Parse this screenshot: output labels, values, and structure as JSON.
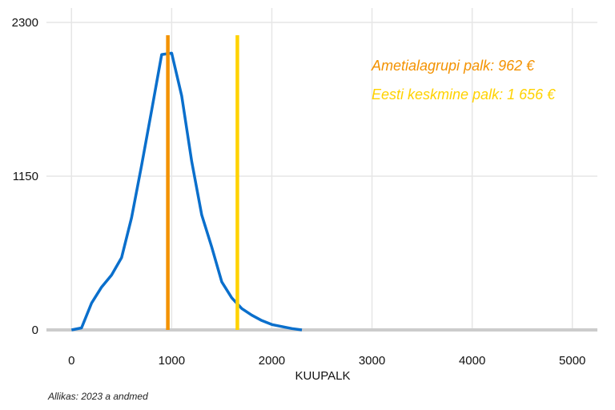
{
  "chart_data": {
    "type": "line",
    "xlabel": "KUUPALK",
    "ylabel": "",
    "xlim": [
      -250,
      5250
    ],
    "ylim": [
      0,
      2300
    ],
    "x_ticks": [
      0,
      1000,
      2000,
      3000,
      4000,
      5000
    ],
    "y_ticks": [
      0,
      1150,
      2300
    ],
    "grid": true,
    "colors": {
      "distribution": "#0a6fcc",
      "occupation_line": "#f39200",
      "average_line": "#ffd200",
      "baseline": "#cccccc",
      "grid": "#e6e6e6"
    },
    "series": [
      {
        "x": [
          0,
          100,
          200,
          300,
          400,
          500,
          600,
          700,
          800,
          900,
          1000,
          1100,
          1200,
          1300,
          1400,
          1500,
          1600,
          1700,
          1800,
          1900,
          2000,
          2100,
          2200,
          2300
        ],
        "y": [
          0,
          15,
          200,
          320,
          410,
          540,
          840,
          1230,
          1640,
          2060,
          2070,
          1750,
          1260,
          860,
          620,
          360,
          240,
          160,
          110,
          70,
          40,
          25,
          10,
          0
        ]
      }
    ],
    "vlines": [
      {
        "x": 962,
        "label": "Ametialagrupi palk: 962 €"
      },
      {
        "x": 1656,
        "label": "Eesti keskmine palk: 1 656 €"
      }
    ]
  },
  "source": "Allikas: 2023 a andmed"
}
